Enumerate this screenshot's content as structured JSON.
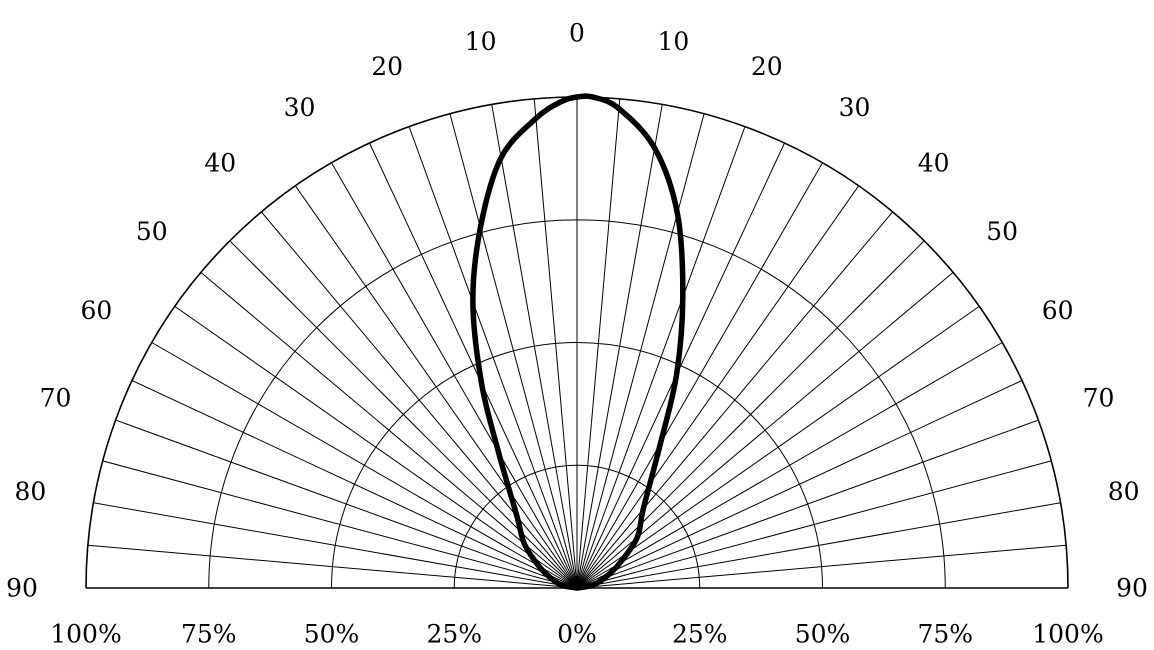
{
  "chart_data": {
    "type": "polar",
    "title": "",
    "angle_labels": [
      "0",
      "10",
      "20",
      "30",
      "40",
      "50",
      "60",
      "70",
      "80",
      "90"
    ],
    "angle_ticks_deg": [
      0,
      10,
      20,
      30,
      40,
      50,
      60,
      70,
      80,
      90
    ],
    "spoke_step_deg": 5,
    "radial_labels": [
      "100%",
      "75%",
      "50%",
      "25%",
      "0%",
      "25%",
      "50%",
      "75%",
      "100%"
    ],
    "radial_rings_pct": [
      25,
      50,
      75,
      100
    ],
    "rlim": [
      0,
      100
    ],
    "grid": true,
    "series": [
      {
        "color": "#000000",
        "points": [
          {
            "angle_deg": -90,
            "r_pct": 0
          },
          {
            "angle_deg": -80,
            "r_pct": 3
          },
          {
            "angle_deg": -70,
            "r_pct": 5.5
          },
          {
            "angle_deg": -60,
            "r_pct": 9
          },
          {
            "angle_deg": -50,
            "r_pct": 14
          },
          {
            "angle_deg": -40,
            "r_pct": 19
          },
          {
            "angle_deg": -30,
            "r_pct": 32
          },
          {
            "angle_deg": -25,
            "r_pct": 46
          },
          {
            "angle_deg": -20,
            "r_pct": 62
          },
          {
            "angle_deg": -15,
            "r_pct": 76
          },
          {
            "angle_deg": -10,
            "r_pct": 89
          },
          {
            "angle_deg": -5,
            "r_pct": 96
          },
          {
            "angle_deg": -2,
            "r_pct": 99
          },
          {
            "angle_deg": 0,
            "r_pct": 100
          },
          {
            "angle_deg": 2,
            "r_pct": 100
          },
          {
            "angle_deg": 5,
            "r_pct": 98
          },
          {
            "angle_deg": 10,
            "r_pct": 91
          },
          {
            "angle_deg": 15,
            "r_pct": 79
          },
          {
            "angle_deg": 20,
            "r_pct": 63
          },
          {
            "angle_deg": 25,
            "r_pct": 48
          },
          {
            "angle_deg": 30,
            "r_pct": 34
          },
          {
            "angle_deg": 40,
            "r_pct": 21
          },
          {
            "angle_deg": 50,
            "r_pct": 16
          },
          {
            "angle_deg": 60,
            "r_pct": 10
          },
          {
            "angle_deg": 70,
            "r_pct": 6
          },
          {
            "angle_deg": 80,
            "r_pct": 3
          },
          {
            "angle_deg": 90,
            "r_pct": 0
          }
        ]
      }
    ]
  }
}
